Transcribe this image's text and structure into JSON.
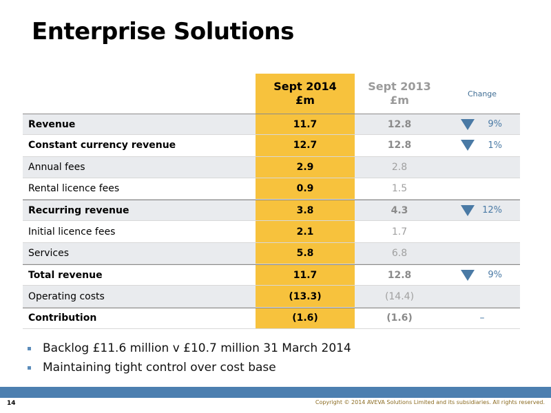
{
  "title": "Enterprise Solutions",
  "header": {
    "col1_line1": "Sept 2014",
    "col1_line2": "£m",
    "col2_line1": "Sept 2013",
    "col2_line2": "£m",
    "col3": "Change"
  },
  "rows": [
    {
      "label": "Revenue",
      "v1": "11.7",
      "v2": "12.8",
      "change": "9%",
      "direction": "down"
    },
    {
      "label": "Constant currency revenue",
      "v1": "12.7",
      "v2": "12.8",
      "change": "1%",
      "direction": "down"
    },
    {
      "label": "Annual fees",
      "v1": "2.9",
      "v2": "2.8",
      "change": ""
    },
    {
      "label": "Rental licence fees",
      "v1": "0.9",
      "v2": "1.5",
      "change": ""
    },
    {
      "label": "Recurring revenue",
      "v1": "3.8",
      "v2": "4.3",
      "change": "12%",
      "direction": "down"
    },
    {
      "label": "Initial licence fees",
      "v1": "2.1",
      "v2": "1.7",
      "change": ""
    },
    {
      "label": "Services",
      "v1": "5.8",
      "v2": "6.8",
      "change": ""
    },
    {
      "label": "Total revenue",
      "v1": "11.7",
      "v2": "12.8",
      "change": "9%",
      "direction": "down"
    },
    {
      "label": "Operating costs",
      "v1": "(13.3)",
      "v2": "(14.4)",
      "change": ""
    },
    {
      "label": "Contribution",
      "v1": "(1.6)",
      "v2": "(1.6)",
      "change": "–"
    }
  ],
  "bullets": [
    "Backlog £11.6 million v £10.7 million 31 March 2014",
    "Maintaining tight control over cost base"
  ],
  "page_number": "14",
  "copyright": "Copyright © 2014 AVEVA Solutions Limited and its subsidiaries. All rights reserved.",
  "colors": {
    "highlight": "#f7c23d",
    "accent": "#4c7fb0",
    "arrow": "#4a7aa5"
  }
}
